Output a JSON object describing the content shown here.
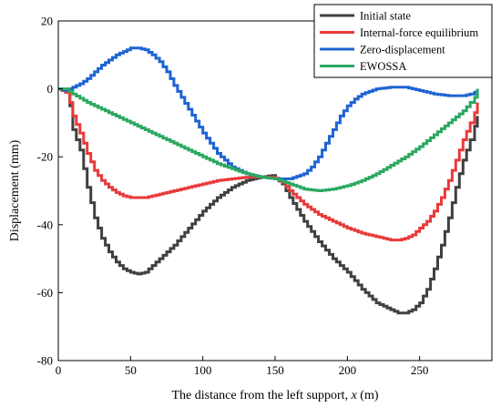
{
  "chart_data": {
    "type": "line",
    "title": "",
    "xlabel": "The distance from the left support, x (m)",
    "xlabel_parts": {
      "prefix": "The distance from the left support, ",
      "var": "x",
      "suffix": " (m)"
    },
    "ylabel": "Displacement (mm)",
    "xlim": [
      0,
      300
    ],
    "ylim": [
      -80,
      20
    ],
    "xticks": [
      0,
      50,
      100,
      150,
      200,
      250
    ],
    "yticks": [
      -80,
      -60,
      -40,
      -20,
      0,
      20
    ],
    "grid": false,
    "legend_position": "top-right",
    "series": [
      {
        "name": "Initial state",
        "color": "#404040",
        "x": [
          0,
          5,
          8,
          10,
          15,
          20,
          25,
          30,
          35,
          40,
          45,
          50,
          55,
          60,
          65,
          70,
          80,
          90,
          100,
          110,
          120,
          130,
          140,
          148,
          155,
          160,
          170,
          180,
          190,
          200,
          210,
          220,
          230,
          235,
          240,
          245,
          250,
          255,
          260,
          265,
          270,
          275,
          280,
          285,
          288,
          290
        ],
        "y": [
          0,
          -1,
          -5,
          -12,
          -18,
          -29,
          -38,
          -44,
          -48,
          -51,
          -53,
          -54,
          -54.5,
          -54,
          -52,
          -50,
          -46,
          -41,
          -36,
          -32,
          -29,
          -27,
          -26,
          -25.5,
          -28,
          -32,
          -39,
          -45,
          -50,
          -54,
          -59,
          -63,
          -65,
          -66,
          -66,
          -65,
          -63,
          -59,
          -53,
          -46,
          -38,
          -29,
          -21,
          -15,
          -11,
          -8
        ]
      },
      {
        "name": "Internal-force equilibrium",
        "color": "#e83a3a",
        "x": [
          0,
          5,
          8,
          10,
          15,
          20,
          25,
          30,
          35,
          40,
          45,
          50,
          55,
          60,
          65,
          70,
          80,
          90,
          100,
          110,
          120,
          130,
          140,
          148,
          155,
          160,
          170,
          180,
          190,
          200,
          210,
          220,
          230,
          235,
          240,
          245,
          250,
          255,
          260,
          265,
          270,
          275,
          280,
          285,
          288,
          290
        ],
        "y": [
          0,
          -1,
          -4,
          -8,
          -13,
          -19,
          -24,
          -27,
          -29,
          -30.5,
          -31.5,
          -32,
          -32,
          -32,
          -31.5,
          -31,
          -30,
          -29,
          -28,
          -27,
          -26.5,
          -26,
          -26,
          -26,
          -27.5,
          -30,
          -34,
          -37,
          -39,
          -41,
          -42.5,
          -43.5,
          -44.5,
          -44.5,
          -44,
          -43,
          -41,
          -39,
          -36,
          -32,
          -27,
          -21,
          -15,
          -10,
          -7,
          -4
        ]
      },
      {
        "name": "Zero-displacement",
        "color": "#1e64d2",
        "x": [
          0,
          5,
          10,
          15,
          20,
          25,
          30,
          35,
          40,
          45,
          50,
          55,
          60,
          65,
          70,
          75,
          80,
          90,
          100,
          110,
          120,
          130,
          140,
          150,
          160,
          170,
          175,
          180,
          185,
          190,
          195,
          200,
          205,
          210,
          220,
          230,
          235,
          240,
          245,
          250,
          260,
          270,
          280,
          285,
          288,
          290
        ],
        "y": [
          0,
          -0.5,
          0.5,
          1.5,
          3,
          5,
          7,
          8.5,
          10,
          11,
          12,
          12,
          11.5,
          10,
          8,
          5,
          1,
          -6,
          -13,
          -19,
          -23,
          -25,
          -26,
          -26.5,
          -26.5,
          -25,
          -23,
          -20,
          -16,
          -12,
          -8,
          -5,
          -3,
          -1.5,
          0,
          0.5,
          0.5,
          0.5,
          0,
          -0.5,
          -1.5,
          -2,
          -2,
          -1.5,
          -1,
          0
        ]
      },
      {
        "name": "EWOSSA",
        "color": "#2aa860",
        "x": [
          0,
          5,
          10,
          20,
          30,
          40,
          50,
          60,
          70,
          80,
          90,
          100,
          110,
          120,
          130,
          140,
          150,
          160,
          170,
          180,
          190,
          200,
          210,
          220,
          230,
          240,
          250,
          260,
          270,
          280,
          285,
          288,
          290
        ],
        "y": [
          0,
          0,
          -1.5,
          -4,
          -6,
          -8,
          -10,
          -12,
          -14,
          -16,
          -18,
          -20,
          -22,
          -23.5,
          -25,
          -26,
          -26.5,
          -28,
          -29.5,
          -30,
          -29.5,
          -28.5,
          -27,
          -25,
          -22.5,
          -20,
          -17,
          -13.5,
          -10,
          -6.5,
          -4,
          -2.5,
          0
        ]
      }
    ]
  }
}
